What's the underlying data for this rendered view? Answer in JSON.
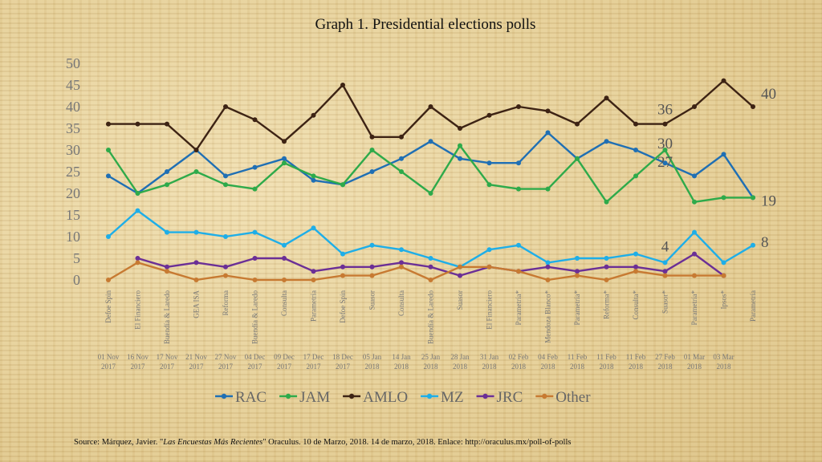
{
  "chart_data": {
    "type": "line",
    "title": "Graph 1. Presidential elections polls",
    "ylim": [
      0,
      50
    ],
    "yticks": [
      "0",
      "5",
      "10",
      "15",
      "20",
      "25",
      "30",
      "35",
      "40",
      "45",
      "50"
    ],
    "pollsters": [
      "Defoe Spin",
      "El Financiero",
      "Buendía & Laredo",
      "GEA ISA",
      "Reforma",
      "Buendía & Laredo",
      "Consulta",
      "Parametría",
      "Defoe Spin",
      "Suasor",
      "Consulta",
      "Buendía & Laredo",
      "Suasor",
      "El Financiero",
      "Parametría*",
      "Mendoza Blanco*",
      "Parametría*",
      "Reforma*",
      "Consulta*",
      "Suasor*",
      "Parametría*",
      "Ipsos*",
      "Parametría"
    ],
    "dates": [
      "01 Nov 2017",
      "16 Nov 2017",
      "17 Nov 2017",
      "21 Nov 2017",
      "27 Nov 2017",
      "04 Dec 2017",
      "09 Dec 2017",
      "17 Dec 2017",
      "18 Dec 2017",
      "05 Jan 2018",
      "14 Jan 2018",
      "25 Jan 2018",
      "28 Jan 2018",
      "31 Jan 2018",
      "02 Feb 2018",
      "04 Feb 2018",
      "11 Feb 2018",
      "11 Feb 2018",
      "11 Feb 2018",
      "27 Feb 2018",
      "01 Mar 2018",
      "03 Mar 2018",
      ""
    ],
    "series": [
      {
        "name": "RAC",
        "color": "#1f6fb4",
        "values": [
          24,
          20,
          25,
          30,
          24,
          26,
          28,
          23,
          22,
          25,
          28,
          32,
          28,
          27,
          27,
          34,
          28,
          32,
          30,
          27,
          24,
          29,
          19
        ]
      },
      {
        "name": "JAM",
        "color": "#2eaa4a",
        "values": [
          30,
          20,
          22,
          25,
          22,
          21,
          27,
          24,
          22,
          30,
          25,
          20,
          31,
          22,
          21,
          21,
          28,
          18,
          24,
          30,
          18,
          19,
          19
        ]
      },
      {
        "name": "AMLO",
        "color": "#3d2314",
        "values": [
          36,
          36,
          36,
          30,
          40,
          37,
          32,
          38,
          45,
          33,
          33,
          40,
          35,
          38,
          40,
          39,
          36,
          42,
          36,
          36,
          40,
          46,
          40
        ]
      },
      {
        "name": "MZ",
        "color": "#1eaee8",
        "values": [
          10,
          16,
          11,
          11,
          10,
          11,
          8,
          12,
          6,
          8,
          7,
          5,
          3,
          7,
          8,
          4,
          5,
          5,
          6,
          4,
          11,
          4,
          8
        ]
      },
      {
        "name": "JRC",
        "color": "#6b2f96",
        "values": [
          null,
          5,
          3,
          4,
          3,
          5,
          5,
          2,
          3,
          3,
          4,
          3,
          1,
          3,
          2,
          3,
          2,
          3,
          3,
          2,
          6,
          1,
          null
        ]
      },
      {
        "name": "Other",
        "color": "#c77a32",
        "values": [
          0,
          4,
          2,
          0,
          1,
          0,
          0,
          0,
          1,
          1,
          3,
          0,
          3,
          3,
          2,
          0,
          1,
          0,
          2,
          1,
          1,
          1,
          null
        ]
      }
    ],
    "annotations": [
      {
        "text": "36",
        "series": "AMLO",
        "index": 19
      },
      {
        "text": "30",
        "series": "JAM",
        "index": 19
      },
      {
        "text": "27",
        "series": "RAC",
        "index": 19
      },
      {
        "text": "4",
        "series": "MZ",
        "index": 19
      },
      {
        "text": "40",
        "series": "AMLO",
        "index": 22
      },
      {
        "text": "19",
        "series": "RAC",
        "index": 22
      },
      {
        "text": "8",
        "series": "MZ",
        "index": 22
      }
    ],
    "legend_position": "bottom"
  },
  "source": {
    "prefix": "Source: Márquez, Javier. \"",
    "title": "Las Encuestas Más Recientes",
    "suffix": "\" Oraculus. 10 de Marzo, 2018. 14 de marzo, 2018. Enlace: http://oraculus.mx/poll-of-polls"
  }
}
